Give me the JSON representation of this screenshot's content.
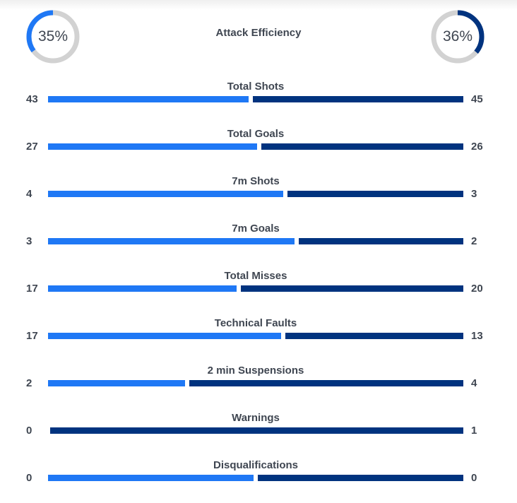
{
  "colors": {
    "home": "#1f78f5",
    "away": "#00337f",
    "track": "#d2d2d2"
  },
  "attack_efficiency": {
    "title": "Attack Efficiency",
    "home": 35,
    "away": 36,
    "home_label": "35%",
    "away_label": "36%"
  },
  "stats": [
    {
      "title": "Total Shots",
      "home": 43,
      "away": 45
    },
    {
      "title": "Total Goals",
      "home": 27,
      "away": 26
    },
    {
      "title": "7m Shots",
      "home": 4,
      "away": 3
    },
    {
      "title": "7m Goals",
      "home": 3,
      "away": 2
    },
    {
      "title": "Total Misses",
      "home": 17,
      "away": 20
    },
    {
      "title": "Technical Faults",
      "home": 17,
      "away": 13
    },
    {
      "title": "2 min Suspensions",
      "home": 2,
      "away": 4
    },
    {
      "title": "Warnings",
      "home": 0,
      "away": 1
    },
    {
      "title": "Disqualifications",
      "home": 0,
      "away": 0
    }
  ]
}
